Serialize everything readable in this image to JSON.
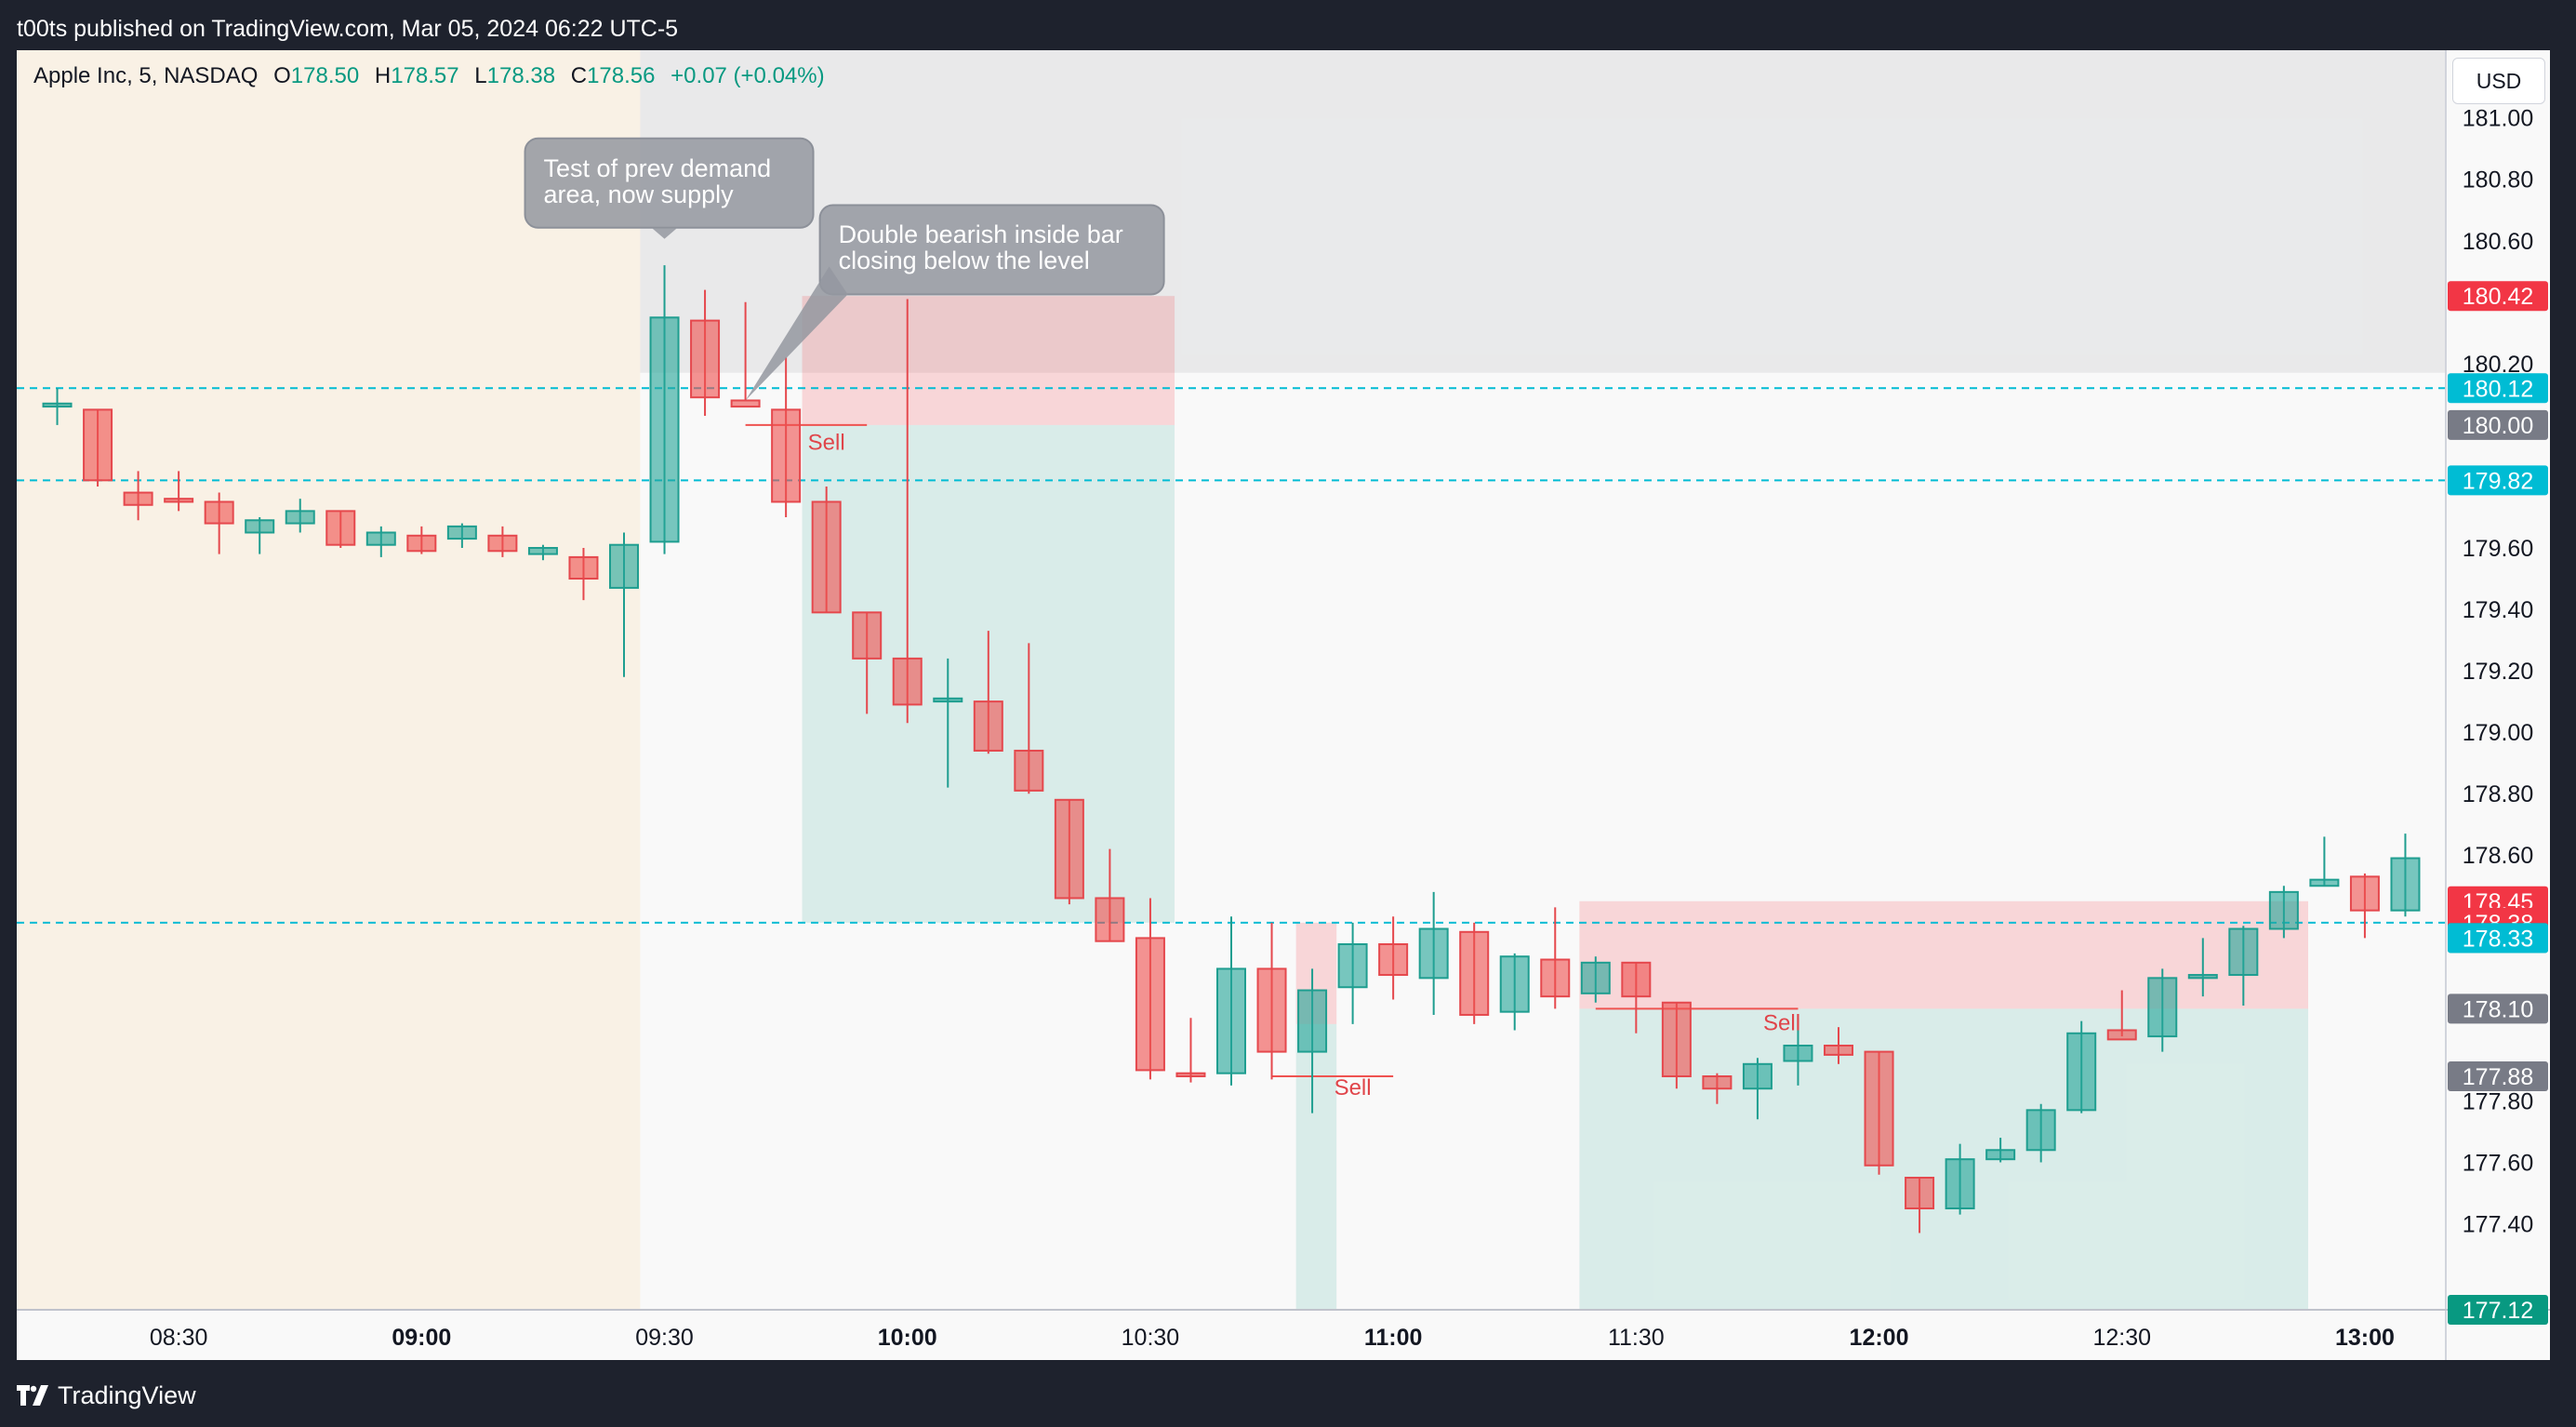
{
  "header": {
    "publisher_line": "t00ts published on TradingView.com, Mar 05, 2024 06:22 UTC-5"
  },
  "legend": {
    "symbol": "Apple Inc, 5, NASDAQ",
    "o_label": "O",
    "o_value": "178.50",
    "h_label": "H",
    "h_value": "178.57",
    "l_label": "L",
    "l_value": "178.38",
    "c_label": "C",
    "c_value": "178.56",
    "change": "+0.07 (+0.04%)"
  },
  "currency": "USD",
  "footer": {
    "brand": "TradingView"
  },
  "colors": {
    "up": "#26a69a",
    "down": "#ef5350",
    "cyan": "#00bcd4",
    "sell_text": "#e0454a",
    "grey_badge": "#787b86"
  },
  "chart_data": {
    "type": "candlestick",
    "ylim": [
      177.12,
      181.22
    ],
    "xlim": [
      "08:10",
      "13:10"
    ],
    "y_ticks": [
      "181.00",
      "180.80",
      "180.60",
      "180.20",
      "179.60",
      "179.40",
      "179.20",
      "179.00",
      "178.80",
      "178.60",
      "177.80",
      "177.60",
      "177.40"
    ],
    "x_ticks": [
      {
        "label": "08:30",
        "t": "08:30",
        "bold": false
      },
      {
        "label": "09:00",
        "t": "09:00",
        "bold": true
      },
      {
        "label": "09:30",
        "t": "09:30",
        "bold": false
      },
      {
        "label": "10:00",
        "t": "10:00",
        "bold": true
      },
      {
        "label": "10:30",
        "t": "10:30",
        "bold": false
      },
      {
        "label": "11:00",
        "t": "11:00",
        "bold": true
      },
      {
        "label": "11:30",
        "t": "11:30",
        "bold": false
      },
      {
        "label": "12:00",
        "t": "12:00",
        "bold": true
      },
      {
        "label": "12:30",
        "t": "12:30",
        "bold": false
      },
      {
        "label": "13:00",
        "t": "13:00",
        "bold": true
      }
    ],
    "candles": [
      {
        "t": "08:15",
        "o": 180.06,
        "h": 180.12,
        "l": 180.0,
        "c": 180.07
      },
      {
        "t": "08:20",
        "o": 180.05,
        "h": 180.05,
        "l": 179.8,
        "c": 179.82
      },
      {
        "t": "08:25",
        "o": 179.78,
        "h": 179.85,
        "l": 179.69,
        "c": 179.74
      },
      {
        "t": "08:30",
        "o": 179.76,
        "h": 179.85,
        "l": 179.72,
        "c": 179.75
      },
      {
        "t": "08:35",
        "o": 179.75,
        "h": 179.78,
        "l": 179.58,
        "c": 179.68
      },
      {
        "t": "08:40",
        "o": 179.65,
        "h": 179.7,
        "l": 179.58,
        "c": 179.69
      },
      {
        "t": "08:45",
        "o": 179.68,
        "h": 179.76,
        "l": 179.65,
        "c": 179.72
      },
      {
        "t": "08:50",
        "o": 179.72,
        "h": 179.72,
        "l": 179.6,
        "c": 179.61
      },
      {
        "t": "08:55",
        "o": 179.61,
        "h": 179.67,
        "l": 179.57,
        "c": 179.65
      },
      {
        "t": "09:00",
        "o": 179.64,
        "h": 179.67,
        "l": 179.58,
        "c": 179.59
      },
      {
        "t": "09:05",
        "o": 179.63,
        "h": 179.68,
        "l": 179.6,
        "c": 179.67
      },
      {
        "t": "09:10",
        "o": 179.64,
        "h": 179.67,
        "l": 179.57,
        "c": 179.59
      },
      {
        "t": "09:15",
        "o": 179.58,
        "h": 179.61,
        "l": 179.56,
        "c": 179.6
      },
      {
        "t": "09:20",
        "o": 179.57,
        "h": 179.6,
        "l": 179.43,
        "c": 179.5
      },
      {
        "t": "09:25",
        "o": 179.47,
        "h": 179.65,
        "l": 179.18,
        "c": 179.61
      },
      {
        "t": "09:30",
        "o": 179.62,
        "h": 180.52,
        "l": 179.58,
        "c": 180.35
      },
      {
        "t": "09:35",
        "o": 180.34,
        "h": 180.44,
        "l": 180.03,
        "c": 180.09
      },
      {
        "t": "09:40",
        "o": 180.08,
        "h": 180.4,
        "l": 180.08,
        "c": 180.06
      },
      {
        "t": "09:45",
        "o": 180.05,
        "h": 180.22,
        "l": 179.7,
        "c": 179.75
      },
      {
        "t": "09:50",
        "o": 179.75,
        "h": 179.8,
        "l": 179.39,
        "c": 179.39
      },
      {
        "t": "09:55",
        "o": 179.39,
        "h": 179.39,
        "l": 179.06,
        "c": 179.24
      },
      {
        "t": "10:00",
        "o": 179.24,
        "h": 180.41,
        "l": 179.03,
        "c": 179.09
      },
      {
        "t": "10:05",
        "o": 179.1,
        "h": 179.24,
        "l": 178.82,
        "c": 179.11
      },
      {
        "t": "10:10",
        "o": 179.1,
        "h": 179.33,
        "l": 178.93,
        "c": 178.94
      },
      {
        "t": "10:15",
        "o": 178.94,
        "h": 179.29,
        "l": 178.8,
        "c": 178.81
      },
      {
        "t": "10:20",
        "o": 178.78,
        "h": 178.78,
        "l": 178.44,
        "c": 178.46
      },
      {
        "t": "10:25",
        "o": 178.46,
        "h": 178.62,
        "l": 178.32,
        "c": 178.32
      },
      {
        "t": "10:30",
        "o": 178.33,
        "h": 178.46,
        "l": 177.87,
        "c": 177.9
      },
      {
        "t": "10:35",
        "o": 177.89,
        "h": 178.07,
        "l": 177.86,
        "c": 177.88
      },
      {
        "t": "10:40",
        "o": 177.89,
        "h": 178.4,
        "l": 177.85,
        "c": 178.23
      },
      {
        "t": "10:45",
        "o": 178.23,
        "h": 178.38,
        "l": 177.87,
        "c": 177.96
      },
      {
        "t": "10:50",
        "o": 177.96,
        "h": 178.23,
        "l": 177.76,
        "c": 178.16
      },
      {
        "t": "10:55",
        "o": 178.17,
        "h": 178.38,
        "l": 178.05,
        "c": 178.31
      },
      {
        "t": "11:00",
        "o": 178.31,
        "h": 178.4,
        "l": 178.13,
        "c": 178.21
      },
      {
        "t": "11:05",
        "o": 178.2,
        "h": 178.48,
        "l": 178.08,
        "c": 178.36
      },
      {
        "t": "11:10",
        "o": 178.35,
        "h": 178.38,
        "l": 178.05,
        "c": 178.08
      },
      {
        "t": "11:15",
        "o": 178.09,
        "h": 178.28,
        "l": 178.03,
        "c": 178.27
      },
      {
        "t": "11:20",
        "o": 178.26,
        "h": 178.43,
        "l": 178.1,
        "c": 178.14
      },
      {
        "t": "11:25",
        "o": 178.15,
        "h": 178.27,
        "l": 178.12,
        "c": 178.25
      },
      {
        "t": "11:30",
        "o": 178.25,
        "h": 178.25,
        "l": 178.02,
        "c": 178.14
      },
      {
        "t": "11:35",
        "o": 178.12,
        "h": 178.12,
        "l": 177.84,
        "c": 177.88
      },
      {
        "t": "11:40",
        "o": 177.88,
        "h": 177.89,
        "l": 177.79,
        "c": 177.84
      },
      {
        "t": "11:45",
        "o": 177.84,
        "h": 177.94,
        "l": 177.74,
        "c": 177.92
      },
      {
        "t": "11:50",
        "o": 177.93,
        "h": 178.07,
        "l": 177.85,
        "c": 177.98
      },
      {
        "t": "11:55",
        "o": 177.98,
        "h": 178.04,
        "l": 177.92,
        "c": 177.95
      },
      {
        "t": "12:00",
        "o": 177.96,
        "h": 177.96,
        "l": 177.56,
        "c": 177.59
      },
      {
        "t": "12:05",
        "o": 177.55,
        "h": 177.55,
        "l": 177.37,
        "c": 177.45
      },
      {
        "t": "12:10",
        "o": 177.45,
        "h": 177.66,
        "l": 177.43,
        "c": 177.61
      },
      {
        "t": "12:15",
        "o": 177.61,
        "h": 177.68,
        "l": 177.6,
        "c": 177.64
      },
      {
        "t": "12:20",
        "o": 177.64,
        "h": 177.79,
        "l": 177.6,
        "c": 177.77
      },
      {
        "t": "12:25",
        "o": 177.77,
        "h": 178.06,
        "l": 177.76,
        "c": 178.02
      },
      {
        "t": "12:30",
        "o": 178.03,
        "h": 178.16,
        "l": 178.01,
        "c": 178.0
      },
      {
        "t": "12:35",
        "o": 178.01,
        "h": 178.23,
        "l": 177.96,
        "c": 178.2
      },
      {
        "t": "12:40",
        "o": 178.2,
        "h": 178.33,
        "l": 178.14,
        "c": 178.21
      },
      {
        "t": "12:45",
        "o": 178.21,
        "h": 178.37,
        "l": 178.11,
        "c": 178.36
      },
      {
        "t": "12:50",
        "o": 178.36,
        "h": 178.5,
        "l": 178.33,
        "c": 178.48
      },
      {
        "t": "12:55",
        "o": 178.5,
        "h": 178.66,
        "l": 178.5,
        "c": 178.52
      },
      {
        "t": "13:00",
        "o": 178.53,
        "h": 178.54,
        "l": 178.33,
        "c": 178.42
      },
      {
        "t": "13:05",
        "o": 178.42,
        "h": 178.67,
        "l": 178.4,
        "c": 178.59
      }
    ],
    "dashed_levels": [
      180.12,
      179.82,
      178.38
    ],
    "session_shading": [
      {
        "from": "08:10",
        "to": "09:27",
        "price_from": 177.12,
        "price_to": 181.22,
        "color": "rgba(255,152,0,0.08)"
      },
      {
        "from": "09:27",
        "to": "13:10",
        "price_from": 180.17,
        "price_to": 181.22,
        "color": "rgba(120,123,134,0.12)"
      }
    ],
    "trade_zones": [
      {
        "from": "09:47",
        "to": "10:33",
        "price_from": 180.0,
        "price_to": 180.42,
        "kind": "risk"
      },
      {
        "from": "09:47",
        "to": "10:33",
        "price_from": 178.38,
        "price_to": 180.0,
        "kind": "reward"
      },
      {
        "from": "10:48",
        "to": "10:53",
        "price_from": 178.05,
        "price_to": 178.38,
        "kind": "risk"
      },
      {
        "from": "10:48",
        "to": "10:53",
        "price_from": 177.12,
        "price_to": 178.05,
        "kind": "reward"
      },
      {
        "from": "11:23",
        "to": "12:53",
        "price_from": 178.1,
        "price_to": 178.45,
        "kind": "risk"
      },
      {
        "from": "11:23",
        "to": "12:53",
        "price_from": 177.12,
        "price_to": 178.1,
        "kind": "reward"
      }
    ],
    "entry_lines": [
      {
        "from": "09:40",
        "to": "09:55",
        "price": 180.0
      },
      {
        "from": "10:45",
        "to": "11:00",
        "price": 177.88
      },
      {
        "from": "11:25",
        "to": "11:50",
        "price": 178.1
      }
    ],
    "sell_labels": [
      {
        "text": "Sell",
        "t": "09:50",
        "price": 179.92
      },
      {
        "text": "Sell",
        "t": "10:55",
        "price": 177.82
      },
      {
        "text": "Sell",
        "t": "11:48",
        "price": 178.03
      }
    ],
    "annotations": [
      {
        "text_lines": [
          "Test of prev demand",
          "area, now supply"
        ],
        "anchor_t": "09:30",
        "anchor_price": 180.6
      },
      {
        "text_lines": [
          "Double bearish inside bar",
          "closing below the level"
        ],
        "anchor_t": "09:40",
        "anchor_price": 180.08
      }
    ],
    "price_badges": [
      {
        "text": "180.42",
        "price": 180.42,
        "color": "#f23645"
      },
      {
        "text": "180.12",
        "price": 180.12,
        "color": "#00bcd4"
      },
      {
        "text": "180.00",
        "price": 180.0,
        "color": "#787b86"
      },
      {
        "text": "179.82",
        "price": 179.82,
        "color": "#00bcd4"
      },
      {
        "text": "178.45",
        "price": 178.45,
        "color": "#f23645"
      },
      {
        "text": "178.38",
        "price": 178.38,
        "color": "#f23645"
      },
      {
        "text": "178.33",
        "price": 178.33,
        "color": "#089981"
      },
      {
        "text": "178.33",
        "price": 178.33,
        "color": "#00bcd4"
      },
      {
        "text": "178.10",
        "price": 178.1,
        "color": "#787b86"
      },
      {
        "text": "177.88",
        "price": 177.88,
        "color": "#787b86"
      },
      {
        "text": "177.12",
        "price": 177.12,
        "color": "#089981"
      }
    ]
  }
}
